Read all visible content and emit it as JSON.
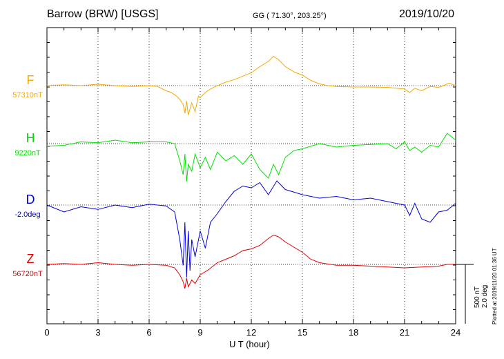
{
  "header": {
    "station": "Barrow (BRW)  [USGS]",
    "coords": "GG ( 71.30°, 203.25°)",
    "date": "2019/10/20"
  },
  "footer": {
    "plotted": "Plotted at 2019/11/20 01:36 UT",
    "scale_nt": "500 nT",
    "scale_deg": "2.0 deg"
  },
  "colors": {
    "F": "#f5a800",
    "H": "#00e000",
    "D": "#0000dd",
    "Z": "#e00000"
  },
  "chart_data": {
    "type": "line",
    "xlabel": "U T (hour)",
    "xlim": [
      0,
      24
    ],
    "xticks": [
      "0",
      "3",
      "6",
      "9",
      "12",
      "15",
      "18",
      "21",
      "24"
    ],
    "grid": true,
    "scale": "500 nT / 2.0 deg per scale bar; values are offsets from baseline",
    "series": [
      {
        "name": "F",
        "baseline": "57310nT",
        "color": "#f5a800",
        "x": [
          0,
          1,
          2,
          3,
          4,
          5,
          6,
          6.5,
          7,
          7.3,
          7.6,
          7.8,
          8.0,
          8.1,
          8.2,
          8.3,
          8.5,
          8.7,
          8.9,
          9.0,
          9.3,
          9.6,
          10,
          10.5,
          11,
          11.5,
          12,
          12.5,
          13,
          13.3,
          13.6,
          14,
          14.5,
          15,
          15.5,
          16,
          16.5,
          17,
          18,
          19,
          20,
          20.5,
          21,
          21.3,
          21.6,
          22,
          22.5,
          23,
          23.3,
          23.6,
          24
        ],
        "y": [
          0,
          5,
          0,
          8,
          0,
          -5,
          0,
          -5,
          -30,
          -40,
          -60,
          -80,
          -110,
          -160,
          -90,
          -170,
          -100,
          -150,
          -60,
          -70,
          -40,
          -20,
          0,
          20,
          35,
          55,
          75,
          110,
          140,
          170,
          150,
          110,
          80,
          60,
          30,
          10,
          0,
          -5,
          -8,
          -8,
          -10,
          -15,
          -20,
          -40,
          -15,
          -30,
          -5,
          -10,
          0,
          15,
          0
        ]
      },
      {
        "name": "H",
        "baseline": "9220nT",
        "color": "#00e000",
        "x": [
          0,
          1,
          2,
          3,
          4,
          5,
          6,
          7,
          7.5,
          7.8,
          8.0,
          8.1,
          8.2,
          8.3,
          8.5,
          8.7,
          9.0,
          9.3,
          9.6,
          10,
          10.5,
          11,
          11.5,
          12,
          12.5,
          13,
          13.3,
          13.6,
          14,
          14.5,
          15,
          16,
          17,
          18,
          19,
          20,
          20.5,
          21,
          21.3,
          21.6,
          22,
          22.5,
          23,
          23.5,
          24
        ],
        "y": [
          -15,
          -10,
          10,
          5,
          20,
          5,
          10,
          10,
          0,
          -100,
          -180,
          -60,
          -220,
          -120,
          -160,
          -60,
          -140,
          -80,
          -150,
          -50,
          -100,
          -70,
          -120,
          -60,
          -150,
          -200,
          -120,
          -180,
          -80,
          -40,
          -30,
          0,
          -20,
          -10,
          -5,
          0,
          -30,
          10,
          -40,
          -20,
          -50,
          -10,
          -20,
          60,
          20
        ]
      },
      {
        "name": "D",
        "baseline": "-2.0deg",
        "color": "#0000dd",
        "x": [
          0,
          1,
          2,
          3,
          4,
          5,
          6,
          7,
          7.5,
          7.8,
          8.0,
          8.1,
          8.2,
          8.3,
          8.4,
          8.5,
          8.7,
          9.0,
          9.3,
          9.6,
          10,
          10.5,
          11,
          11.5,
          12,
          12.5,
          13,
          13.5,
          14,
          15,
          16,
          17,
          18,
          19,
          20,
          21,
          21.3,
          21.6,
          22,
          22.5,
          23,
          23.5,
          24
        ],
        "y": [
          0,
          -40,
          -10,
          -25,
          0,
          -15,
          5,
          -5,
          -40,
          -200,
          -350,
          -100,
          -420,
          -150,
          -380,
          -200,
          -300,
          -150,
          -250,
          -100,
          -50,
          20,
          80,
          110,
          100,
          130,
          60,
          140,
          90,
          60,
          40,
          50,
          30,
          40,
          20,
          0,
          -60,
          10,
          -80,
          -100,
          -40,
          -30,
          10
        ]
      },
      {
        "name": "Z",
        "baseline": "56720nT",
        "color": "#e00000",
        "x": [
          0,
          1,
          2,
          3,
          4,
          5,
          6,
          7,
          7.5,
          7.8,
          8.0,
          8.1,
          8.2,
          8.3,
          8.5,
          8.7,
          9.0,
          9.5,
          10,
          10.5,
          11,
          11.5,
          12,
          12.5,
          13,
          13.3,
          13.6,
          14,
          14.5,
          15,
          15.5,
          16,
          17,
          18,
          19,
          20,
          21,
          22,
          23,
          23.5,
          24
        ],
        "y": [
          0,
          5,
          0,
          10,
          0,
          -5,
          0,
          -5,
          -20,
          -60,
          -100,
          -140,
          -80,
          -130,
          -90,
          -110,
          -60,
          -30,
          10,
          30,
          50,
          80,
          90,
          110,
          150,
          170,
          160,
          130,
          100,
          70,
          30,
          10,
          -5,
          -5,
          -10,
          -15,
          -20,
          -15,
          -10,
          0,
          0
        ]
      }
    ]
  }
}
